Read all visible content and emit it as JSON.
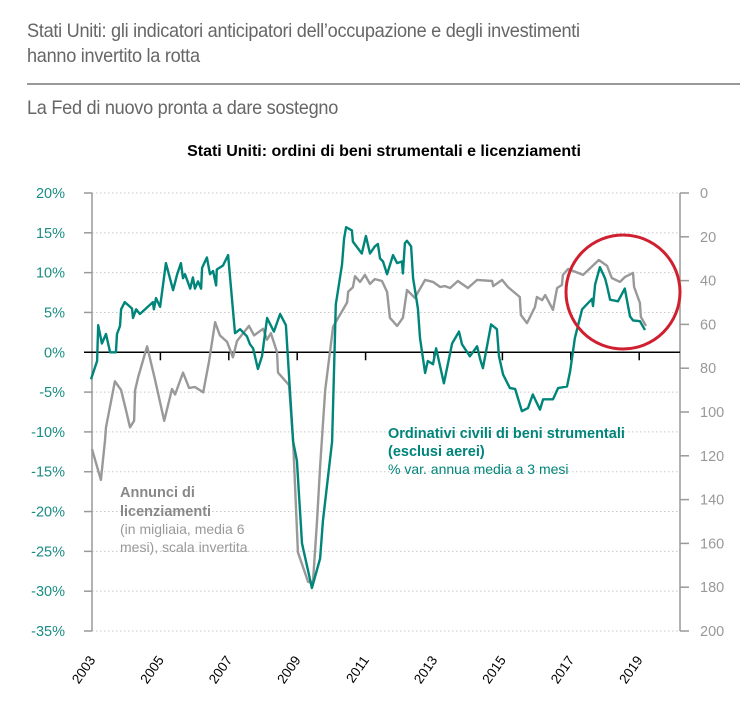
{
  "header": {
    "title": "Stati Uniti: gli indicatori anticipatori dell’occupazione e degli investimenti\nhanno invertito la rotta",
    "subtitle": "La Fed di nuovo pronta a dare sostegno"
  },
  "chart_data": {
    "type": "line",
    "title": "Stati Uniti: ordini di beni strumentali e licenziamenti",
    "left_axis": {
      "ticks": [
        "20%",
        "15%",
        "10%",
        "5%",
        "0%",
        "-5%",
        "-10%",
        "-15%",
        "-20%",
        "-25%",
        "-30%",
        "-35%"
      ],
      "range": [
        -35,
        20
      ]
    },
    "right_axis": {
      "ticks": [
        "0",
        "20",
        "40",
        "60",
        "80",
        "100",
        "120",
        "140",
        "160",
        "180",
        "200"
      ],
      "range": [
        0,
        200
      ],
      "inverted": true
    },
    "x_axis": {
      "ticks": [
        "2003",
        "2005",
        "2007",
        "2009",
        "2011",
        "2013",
        "2015",
        "2017",
        "2019"
      ],
      "range": [
        2003,
        2020
      ]
    },
    "grid": true,
    "colors": {
      "orders": "#00857a",
      "layoffs": "#999999",
      "highlight": "#d0202f"
    },
    "series": [
      {
        "name": "Ordinativi civili di beni strumentali (esclusi aerei)",
        "label_line1": "Ordinativi civili di beni strumentali",
        "label_line2": "(esclusi aerei)",
        "label_line3": "% var. annua media a 3 mesi",
        "axis": "left",
        "points": [
          [
            2002.97,
            -3.4
          ],
          [
            2003.15,
            -1.1
          ],
          [
            2003.18,
            3.4
          ],
          [
            2003.29,
            1.1
          ],
          [
            2003.41,
            2.3
          ],
          [
            2003.53,
            0
          ],
          [
            2003.7,
            0
          ],
          [
            2003.73,
            2.3
          ],
          [
            2003.82,
            3.3
          ],
          [
            2003.85,
            5.4
          ],
          [
            2003.96,
            6.3
          ],
          [
            2004.17,
            5.5
          ],
          [
            2004.2,
            4.3
          ],
          [
            2004.29,
            5.4
          ],
          [
            2004.4,
            4.8
          ],
          [
            2004.78,
            6.3
          ],
          [
            2004.81,
            5.4
          ],
          [
            2004.87,
            6.8
          ],
          [
            2004.99,
            5.7
          ],
          [
            2005.16,
            11.2
          ],
          [
            2005.37,
            7.8
          ],
          [
            2005.49,
            9.8
          ],
          [
            2005.6,
            11.2
          ],
          [
            2005.66,
            9.3
          ],
          [
            2005.72,
            9.8
          ],
          [
            2005.87,
            8.0
          ],
          [
            2005.95,
            9.4
          ],
          [
            2006.01,
            8.0
          ],
          [
            2006.1,
            8.9
          ],
          [
            2006.19,
            8.0
          ],
          [
            2006.22,
            10.6
          ],
          [
            2006.36,
            11.9
          ],
          [
            2006.45,
            9.8
          ],
          [
            2006.54,
            10.2
          ],
          [
            2006.63,
            8.4
          ],
          [
            2006.65,
            10.4
          ],
          [
            2006.83,
            10.9
          ],
          [
            2006.98,
            12.2
          ],
          [
            2007.18,
            2.4
          ],
          [
            2007.33,
            2.9
          ],
          [
            2007.53,
            2.0
          ],
          [
            2007.62,
            1.0
          ],
          [
            2007.71,
            0.5
          ],
          [
            2007.85,
            -2.1
          ],
          [
            2007.97,
            -0.5
          ],
          [
            2008.12,
            4.3
          ],
          [
            2008.32,
            2.6
          ],
          [
            2008.5,
            4.8
          ],
          [
            2008.67,
            3.4
          ],
          [
            2008.88,
            -11.2
          ],
          [
            2008.99,
            -13.6
          ],
          [
            2009.14,
            -24
          ],
          [
            2009.43,
            -29.6
          ],
          [
            2009.67,
            -25.9
          ],
          [
            2009.75,
            -21.2
          ],
          [
            2010.02,
            -11.2
          ],
          [
            2010.13,
            6
          ],
          [
            2010.31,
            11
          ],
          [
            2010.37,
            14.3
          ],
          [
            2010.43,
            15.7
          ],
          [
            2010.6,
            15.3
          ],
          [
            2010.63,
            13.9
          ],
          [
            2010.89,
            12.4
          ],
          [
            2011.01,
            14.6
          ],
          [
            2011.13,
            12.4
          ],
          [
            2011.27,
            13.3
          ],
          [
            2011.36,
            13.6
          ],
          [
            2011.42,
            11.8
          ],
          [
            2011.51,
            11.4
          ],
          [
            2011.63,
            9.8
          ],
          [
            2011.8,
            12.2
          ],
          [
            2011.92,
            11.2
          ],
          [
            2012.06,
            11.4
          ],
          [
            2012.09,
            9.9
          ],
          [
            2012.15,
            13.7
          ],
          [
            2012.21,
            14.0
          ],
          [
            2012.33,
            13.3
          ],
          [
            2012.39,
            9.3
          ],
          [
            2012.53,
            5.5
          ],
          [
            2012.59,
            1.8
          ],
          [
            2012.74,
            -2.6
          ],
          [
            2012.82,
            -1.1
          ],
          [
            2012.97,
            -1.5
          ],
          [
            2013.06,
            0.5
          ],
          [
            2013.29,
            -3.9
          ],
          [
            2013.53,
            1.1
          ],
          [
            2013.73,
            2.6
          ],
          [
            2013.82,
            1.0
          ],
          [
            2014.05,
            -0.5
          ],
          [
            2014.26,
            0.75
          ],
          [
            2014.35,
            -0.9
          ],
          [
            2014.43,
            -2.0
          ],
          [
            2014.67,
            3.5
          ],
          [
            2014.84,
            2.9
          ],
          [
            2014.9,
            -0.5
          ],
          [
            2015.02,
            -2.8
          ],
          [
            2015.22,
            -4.5
          ],
          [
            2015.37,
            -4.6
          ],
          [
            2015.57,
            -7.4
          ],
          [
            2015.75,
            -7.0
          ],
          [
            2015.89,
            -5.3
          ],
          [
            2016.1,
            -7.2
          ],
          [
            2016.19,
            -5.9
          ],
          [
            2016.48,
            -5.9
          ],
          [
            2016.63,
            -4.5
          ],
          [
            2016.89,
            -4.3
          ],
          [
            2016.98,
            -2.4
          ],
          [
            2017.12,
            1.8
          ],
          [
            2017.33,
            5.4
          ],
          [
            2017.62,
            6.7
          ],
          [
            2017.65,
            5.8
          ],
          [
            2017.71,
            8.5
          ],
          [
            2017.85,
            10.7
          ],
          [
            2018.0,
            9.3
          ],
          [
            2018.06,
            8.3
          ],
          [
            2018.15,
            6.6
          ],
          [
            2018.38,
            6.4
          ],
          [
            2018.58,
            8.0
          ],
          [
            2018.73,
            4.5
          ],
          [
            2018.82,
            4.0
          ],
          [
            2019.02,
            3.9
          ],
          [
            2019.17,
            2.8
          ]
        ]
      },
      {
        "name": "Annunci di licenziamenti (in migliaia, media 6 mesi), scala invertita",
        "label_line1": "Annunci di",
        "label_line2": "licenziamenti",
        "label_line3": "(in migliaia, media 6",
        "label_line4": "mesi), scala invertita",
        "axis": "right",
        "points": [
          [
            2003.0,
            117
          ],
          [
            2003.26,
            131
          ],
          [
            2003.38,
            113
          ],
          [
            2003.41,
            107
          ],
          [
            2003.67,
            86
          ],
          [
            2003.85,
            90
          ],
          [
            2003.99,
            99
          ],
          [
            2004.11,
            107
          ],
          [
            2004.23,
            104
          ],
          [
            2004.26,
            90
          ],
          [
            2004.35,
            84
          ],
          [
            2004.61,
            70
          ],
          [
            2004.84,
            85
          ],
          [
            2005.11,
            104
          ],
          [
            2005.34,
            89.5
          ],
          [
            2005.43,
            92
          ],
          [
            2005.66,
            82
          ],
          [
            2005.84,
            89
          ],
          [
            2006.01,
            88.6
          ],
          [
            2006.25,
            91
          ],
          [
            2006.42,
            77
          ],
          [
            2006.6,
            59
          ],
          [
            2006.74,
            65
          ],
          [
            2006.95,
            68
          ],
          [
            2007.12,
            75
          ],
          [
            2007.24,
            67.6
          ],
          [
            2007.59,
            60.7
          ],
          [
            2007.74,
            65
          ],
          [
            2008.0,
            62
          ],
          [
            2008.12,
            67
          ],
          [
            2008.23,
            64
          ],
          [
            2008.41,
            72.6
          ],
          [
            2008.44,
            82
          ],
          [
            2008.76,
            87.7
          ],
          [
            2008.88,
            113
          ],
          [
            2009.02,
            164
          ],
          [
            2009.32,
            177.6
          ],
          [
            2009.46,
            178
          ],
          [
            2009.58,
            150
          ],
          [
            2009.67,
            125
          ],
          [
            2009.82,
            90
          ],
          [
            2010.05,
            61
          ],
          [
            2010.46,
            50
          ],
          [
            2010.49,
            45
          ],
          [
            2010.63,
            43
          ],
          [
            2010.69,
            38
          ],
          [
            2010.84,
            40.6
          ],
          [
            2010.98,
            37.4
          ],
          [
            2011.13,
            41.5
          ],
          [
            2011.27,
            39.3
          ],
          [
            2011.48,
            40.2
          ],
          [
            2011.63,
            45.2
          ],
          [
            2011.71,
            57
          ],
          [
            2011.92,
            60.7
          ],
          [
            2012.09,
            57
          ],
          [
            2012.21,
            44.3
          ],
          [
            2012.44,
            47.9
          ],
          [
            2012.74,
            39.7
          ],
          [
            2012.97,
            40.6
          ],
          [
            2013.18,
            42.9
          ],
          [
            2013.32,
            42.5
          ],
          [
            2013.47,
            43.4
          ],
          [
            2013.7,
            40.2
          ],
          [
            2013.99,
            43.4
          ],
          [
            2014.26,
            39.7
          ],
          [
            2014.7,
            40.2
          ],
          [
            2014.73,
            42.5
          ],
          [
            2014.99,
            39.7
          ],
          [
            2015.16,
            42.9
          ],
          [
            2015.51,
            47.5
          ],
          [
            2015.54,
            55.7
          ],
          [
            2015.72,
            59.4
          ],
          [
            2015.95,
            52.1
          ],
          [
            2016.01,
            47.5
          ],
          [
            2016.16,
            48.9
          ],
          [
            2016.25,
            46.6
          ],
          [
            2016.48,
            53.4
          ],
          [
            2016.6,
            43.4
          ],
          [
            2016.74,
            42
          ],
          [
            2016.77,
            37.4
          ],
          [
            2016.92,
            34.7
          ],
          [
            2017.36,
            37.4
          ],
          [
            2017.82,
            30.6
          ],
          [
            2018.06,
            33.3
          ],
          [
            2018.2,
            38.8
          ],
          [
            2018.44,
            40.6
          ],
          [
            2018.58,
            38.4
          ],
          [
            2018.82,
            36.5
          ],
          [
            2018.85,
            42.9
          ],
          [
            2019.02,
            50.2
          ],
          [
            2019.05,
            56.6
          ],
          [
            2019.2,
            60.7
          ]
        ]
      }
    ],
    "annotation": "red circle highlighting 2017–2019 reversal"
  }
}
